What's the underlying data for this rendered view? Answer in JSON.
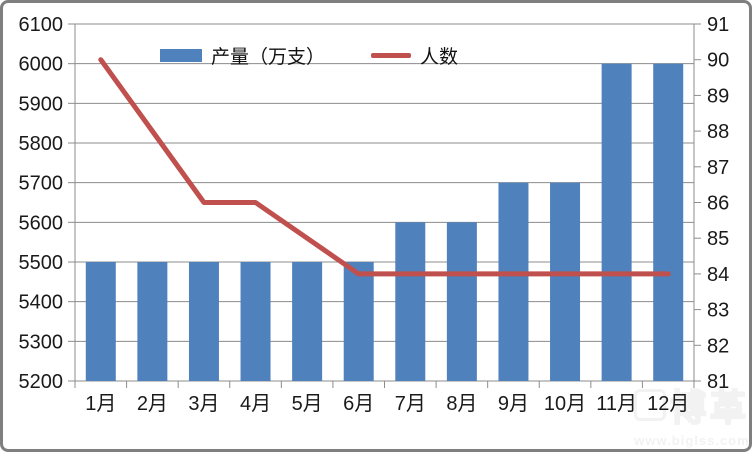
{
  "chart_data": {
    "type": "combo",
    "categories": [
      "1月",
      "2月",
      "3月",
      "4月",
      "5月",
      "6月",
      "7月",
      "8月",
      "9月",
      "10月",
      "11月",
      "12月"
    ],
    "series": [
      {
        "name": "产量（万支）",
        "type": "bar",
        "axis": "left",
        "color": "#4f81bd",
        "values": [
          5500,
          5500,
          5500,
          5500,
          5500,
          5500,
          5600,
          5600,
          5700,
          5700,
          6000,
          6000
        ]
      },
      {
        "name": "人数",
        "type": "line",
        "axis": "right",
        "color": "#c0504d",
        "values": [
          90,
          88,
          86,
          86,
          85,
          84,
          84,
          84,
          84,
          84,
          84,
          84
        ]
      }
    ],
    "left_axis": {
      "min": 5200,
      "max": 6100,
      "step": 100,
      "ticks": [
        6100,
        6000,
        5900,
        5800,
        5700,
        5600,
        5500,
        5400,
        5300,
        5200
      ]
    },
    "right_axis": {
      "min": 81,
      "max": 91,
      "step": 1,
      "ticks": [
        91,
        90,
        89,
        88,
        87,
        86,
        85,
        84,
        83,
        82,
        81
      ]
    },
    "grid": true,
    "grid_color": "#8c8c8c",
    "axis_color": "#8c8c8c",
    "legend_position": "top",
    "title": ""
  },
  "watermark": {
    "logo_text": "博革",
    "url_text": "www.biglss.com"
  }
}
